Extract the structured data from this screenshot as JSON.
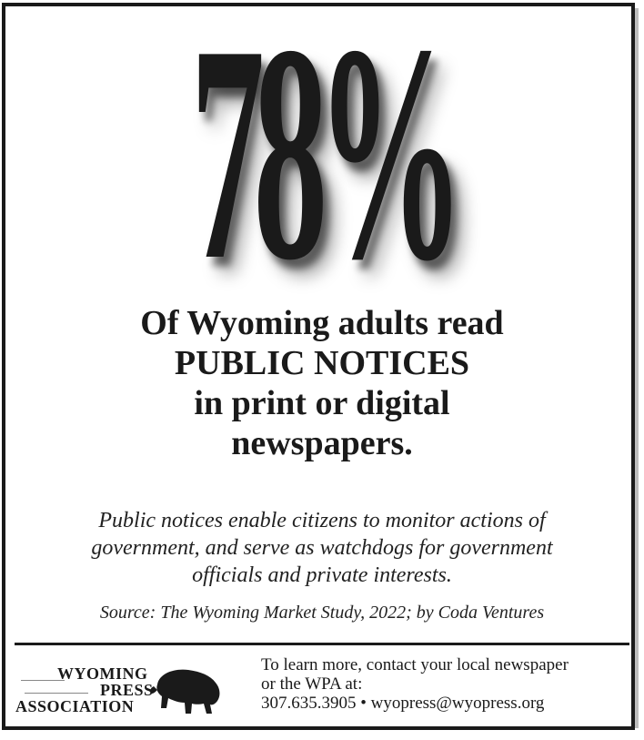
{
  "ad": {
    "stat": "78%",
    "headline": [
      "Of Wyoming adults read",
      "PUBLIC NOTICES",
      "in print or digital",
      "newspapers."
    ],
    "body": [
      "Public notices enable citizens to monitor actions of",
      "government, and serve as watchdogs for government",
      "officials and private interests."
    ],
    "source": "Source: The Wyoming Market Study, 2022; by Coda Ventures"
  },
  "footer": {
    "logo_lines": [
      "WYOMING",
      "PRESS",
      "ASSOCIATION"
    ],
    "contact_lines": [
      "To learn more, contact your local newspaper",
      "or the WPA at:",
      "307.635.3905 • wyopress@wyopress.org"
    ]
  },
  "colors": {
    "ink": "#1a1a1a",
    "shadow": "#8a8a8a",
    "background": "#ffffff"
  }
}
